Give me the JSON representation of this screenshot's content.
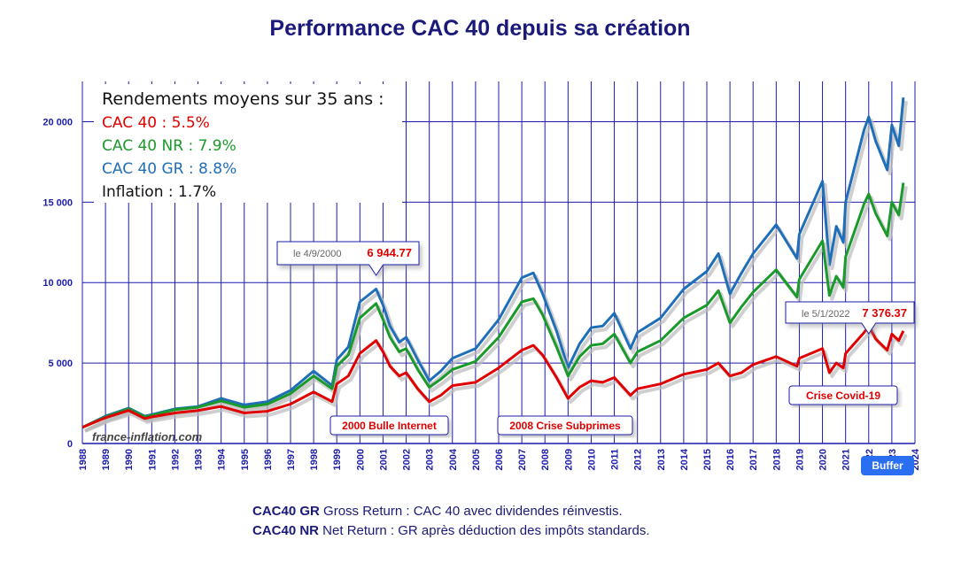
{
  "page": {
    "title": "Performance CAC 40 depuis sa création",
    "watermark": "france-inflation.com",
    "buffer_label": "Buffer"
  },
  "legend_box": {
    "heading": "Rendements moyens sur 35 ans :",
    "lines": [
      {
        "text": "CAC 40 : 5.5%",
        "color": "#e00000"
      },
      {
        "text": "CAC 40 NR : 7.9%",
        "color": "#1a9a2a"
      },
      {
        "text": "CAC 40 GR : 8.8%",
        "color": "#1f6fb8"
      },
      {
        "text": "Inflation : 1.7%",
        "color": "#111111"
      }
    ]
  },
  "footnotes": [
    {
      "bold": "CAC40 GR",
      "text": " Gross Return : CAC 40 avec dividendes réinvestis."
    },
    {
      "bold": "CAC40 NR",
      "text": " Net Return : GR après déduction des impôts standards."
    }
  ],
  "chart_data": {
    "type": "line",
    "xlim": [
      1988,
      2024
    ],
    "ylim": [
      0,
      22500
    ],
    "x_ticks": [
      "1988",
      "1989",
      "1990",
      "1991",
      "1992",
      "1993",
      "1994",
      "1995",
      "1996",
      "1997",
      "1998",
      "1999",
      "2000",
      "2001",
      "2002",
      "2003",
      "2004",
      "2005",
      "2006",
      "2007",
      "2008",
      "2009",
      "2010",
      "2011",
      "2012",
      "2013",
      "2014",
      "2015",
      "2016",
      "2017",
      "2018",
      "2019",
      "2020",
      "2021",
      "2022",
      "2023",
      "2024"
    ],
    "y_ticks": [
      {
        "value": 0,
        "label": "0"
      },
      {
        "value": 5000,
        "label": "5 000"
      },
      {
        "value": 10000,
        "label": "10 000"
      },
      {
        "value": 15000,
        "label": "15 000"
      },
      {
        "value": 20000,
        "label": "20 000"
      }
    ],
    "series": [
      {
        "name": "CAC 40 GR",
        "color": "#1f6fb8",
        "points": [
          [
            1988,
            1000
          ],
          [
            1989,
            1700
          ],
          [
            1990,
            2200
          ],
          [
            1990.7,
            1700
          ],
          [
            1991,
            1800
          ],
          [
            1992,
            2150
          ],
          [
            1993,
            2300
          ],
          [
            1994,
            2800
          ],
          [
            1995,
            2400
          ],
          [
            1996,
            2600
          ],
          [
            1997,
            3300
          ],
          [
            1998,
            4500
          ],
          [
            1998.8,
            3600
          ],
          [
            1999,
            5200
          ],
          [
            1999.5,
            6000
          ],
          [
            2000,
            8800
          ],
          [
            2000.7,
            9600
          ],
          [
            2001,
            8600
          ],
          [
            2001.3,
            7300
          ],
          [
            2001.7,
            6300
          ],
          [
            2002,
            6600
          ],
          [
            2002.5,
            5200
          ],
          [
            2003,
            3900
          ],
          [
            2003.5,
            4500
          ],
          [
            2004,
            5300
          ],
          [
            2005,
            5900
          ],
          [
            2006,
            7700
          ],
          [
            2007,
            10300
          ],
          [
            2007.5,
            10600
          ],
          [
            2007.9,
            9300
          ],
          [
            2008.5,
            7000
          ],
          [
            2009,
            4700
          ],
          [
            2009.5,
            6200
          ],
          [
            2010,
            7200
          ],
          [
            2010.5,
            7300
          ],
          [
            2011,
            8100
          ],
          [
            2011.7,
            5900
          ],
          [
            2012,
            6900
          ],
          [
            2013,
            7800
          ],
          [
            2014,
            9600
          ],
          [
            2015,
            10700
          ],
          [
            2015.5,
            11800
          ],
          [
            2016,
            9300
          ],
          [
            2016.5,
            10600
          ],
          [
            2017,
            11800
          ],
          [
            2018,
            13600
          ],
          [
            2018.9,
            11500
          ],
          [
            2019,
            13000
          ],
          [
            2020,
            16300
          ],
          [
            2020.3,
            11100
          ],
          [
            2020.6,
            13500
          ],
          [
            2020.9,
            12500
          ],
          [
            2021,
            15000
          ],
          [
            2021.8,
            19500
          ],
          [
            2022,
            20300
          ],
          [
            2022.3,
            18800
          ],
          [
            2022.8,
            17000
          ],
          [
            2023,
            19800
          ],
          [
            2023.3,
            18500
          ],
          [
            2023.5,
            21500
          ]
        ]
      },
      {
        "name": "CAC 40 NR",
        "color": "#1a9a2a",
        "points": [
          [
            1988,
            1000
          ],
          [
            1989,
            1650
          ],
          [
            1990,
            2150
          ],
          [
            1990.7,
            1650
          ],
          [
            1991,
            1750
          ],
          [
            1992,
            2100
          ],
          [
            1993,
            2250
          ],
          [
            1994,
            2650
          ],
          [
            1995,
            2250
          ],
          [
            1996,
            2450
          ],
          [
            1997,
            3100
          ],
          [
            1998,
            4200
          ],
          [
            1998.8,
            3400
          ],
          [
            1999,
            4800
          ],
          [
            1999.5,
            5500
          ],
          [
            2000,
            7800
          ],
          [
            2000.7,
            8700
          ],
          [
            2001,
            7700
          ],
          [
            2001.3,
            6600
          ],
          [
            2001.7,
            5700
          ],
          [
            2002,
            5900
          ],
          [
            2002.5,
            4600
          ],
          [
            2003,
            3500
          ],
          [
            2003.5,
            4000
          ],
          [
            2004,
            4600
          ],
          [
            2005,
            5100
          ],
          [
            2006,
            6600
          ],
          [
            2007,
            8800
          ],
          [
            2007.5,
            9000
          ],
          [
            2007.9,
            8000
          ],
          [
            2008.5,
            6000
          ],
          [
            2009,
            4200
          ],
          [
            2009.5,
            5400
          ],
          [
            2010,
            6100
          ],
          [
            2010.5,
            6200
          ],
          [
            2011,
            6800
          ],
          [
            2011.7,
            5000
          ],
          [
            2012,
            5700
          ],
          [
            2013,
            6400
          ],
          [
            2014,
            7800
          ],
          [
            2015,
            8600
          ],
          [
            2015.5,
            9500
          ],
          [
            2016,
            7500
          ],
          [
            2016.5,
            8500
          ],
          [
            2017,
            9400
          ],
          [
            2018,
            10800
          ],
          [
            2018.9,
            9100
          ],
          [
            2019,
            10200
          ],
          [
            2020,
            12600
          ],
          [
            2020.3,
            9200
          ],
          [
            2020.6,
            10400
          ],
          [
            2020.9,
            9700
          ],
          [
            2021,
            11600
          ],
          [
            2021.8,
            14900
          ],
          [
            2022,
            15500
          ],
          [
            2022.3,
            14300
          ],
          [
            2022.8,
            12900
          ],
          [
            2023,
            15000
          ],
          [
            2023.3,
            14200
          ],
          [
            2023.5,
            16200
          ]
        ]
      },
      {
        "name": "CAC 40",
        "color": "#e00000",
        "points": [
          [
            1988,
            1000
          ],
          [
            1989,
            1600
          ],
          [
            1990,
            2050
          ],
          [
            1990.7,
            1550
          ],
          [
            1991,
            1650
          ],
          [
            1992,
            1900
          ],
          [
            1993,
            2050
          ],
          [
            1994,
            2300
          ],
          [
            1995,
            1900
          ],
          [
            1996,
            2000
          ],
          [
            1997,
            2450
          ],
          [
            1998,
            3200
          ],
          [
            1998.8,
            2600
          ],
          [
            1999,
            3700
          ],
          [
            1999.5,
            4200
          ],
          [
            2000,
            5600
          ],
          [
            2000.7,
            6400
          ],
          [
            2001,
            5700
          ],
          [
            2001.3,
            4800
          ],
          [
            2001.7,
            4200
          ],
          [
            2002,
            4400
          ],
          [
            2002.5,
            3400
          ],
          [
            2003,
            2600
          ],
          [
            2003.5,
            3000
          ],
          [
            2004,
            3600
          ],
          [
            2005,
            3800
          ],
          [
            2006,
            4700
          ],
          [
            2007,
            5800
          ],
          [
            2007.5,
            6100
          ],
          [
            2007.9,
            5500
          ],
          [
            2008.5,
            4100
          ],
          [
            2009,
            2800
          ],
          [
            2009.5,
            3500
          ],
          [
            2010,
            3900
          ],
          [
            2010.5,
            3800
          ],
          [
            2011,
            4100
          ],
          [
            2011.7,
            3000
          ],
          [
            2012,
            3400
          ],
          [
            2013,
            3700
          ],
          [
            2014,
            4300
          ],
          [
            2015,
            4600
          ],
          [
            2015.5,
            5000
          ],
          [
            2016,
            4200
          ],
          [
            2016.5,
            4400
          ],
          [
            2017,
            4900
          ],
          [
            2018,
            5400
          ],
          [
            2018.9,
            4800
          ],
          [
            2019,
            5300
          ],
          [
            2020,
            5900
          ],
          [
            2020.3,
            4400
          ],
          [
            2020.6,
            5000
          ],
          [
            2020.9,
            4700
          ],
          [
            2021,
            5600
          ],
          [
            2021.8,
            6900
          ],
          [
            2022,
            7300
          ],
          [
            2022.3,
            6500
          ],
          [
            2022.8,
            5800
          ],
          [
            2023,
            6800
          ],
          [
            2023.3,
            6400
          ],
          [
            2023.5,
            7000
          ]
        ]
      }
    ],
    "callouts": [
      {
        "date_label": "le 4/9/2000",
        "value_label": "6 944.77",
        "pointer_x": 2000.7
      },
      {
        "date_label": "le 5/1/2022",
        "value_label": "7 376.37",
        "pointer_x": 2022.0
      }
    ],
    "annotations": [
      {
        "text": "2000 Bulle Internet",
        "x": 2000.9
      },
      {
        "text": "2008 Crise Subprimes",
        "x": 2008.2
      },
      {
        "text": "Crise Covid-19",
        "x": 2021.3
      }
    ]
  }
}
